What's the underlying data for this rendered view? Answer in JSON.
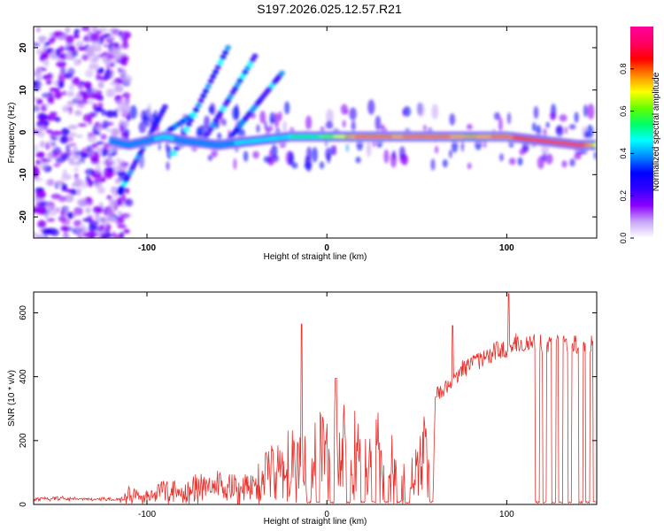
{
  "title": "S197.2026.025.12.57.R21",
  "chart_data": [
    {
      "type": "heatmap",
      "xlabel": "Height of straight line (km)",
      "ylabel": "Frequency (Hz)",
      "xlim": [
        -163,
        150
      ],
      "ylim": [
        -25,
        25
      ],
      "xticks": [
        -100,
        0,
        100
      ],
      "yticks": [
        -20,
        -10,
        0,
        10,
        20
      ],
      "colorbar": {
        "label": "Normalized spectral amplitude",
        "range": [
          0,
          1
        ],
        "ticks": [
          0.0,
          0.2,
          0.4,
          0.6,
          0.8
        ],
        "colormap": [
          "#ffffff",
          "#c9a7f7",
          "#8b00ff",
          "#3300ff",
          "#0000ff",
          "#0088ff",
          "#00ffff",
          "#00ff66",
          "#66ff00",
          "#ffff00",
          "#ff8800",
          "#ff0000",
          "#ff0066",
          "#ff0099"
        ]
      },
      "ridge": {
        "description": "main spectral ridge frequency vs height",
        "x": [
          -120,
          -110,
          -100,
          -90,
          -80,
          -60,
          -40,
          -20,
          0,
          20,
          40,
          60,
          80,
          100,
          120,
          140,
          150
        ],
        "freq": [
          -2,
          -3,
          -2,
          -1,
          -2,
          -3,
          -2,
          -1,
          -1,
          -1,
          -1,
          -1,
          -1,
          -1,
          -2,
          -3,
          -3
        ],
        "peak_amplitude": [
          0.4,
          0.35,
          0.4,
          0.45,
          0.4,
          0.4,
          0.45,
          0.5,
          0.6,
          0.85,
          0.8,
          0.85,
          0.75,
          0.85,
          0.9,
          0.95,
          0.7
        ]
      },
      "noise_region": {
        "x_range": [
          -163,
          -120
        ],
        "amplitude": 0.2
      }
    },
    {
      "type": "line",
      "xlabel": "Height of straight line (km)",
      "ylabel": "SNR (10 * v/v)",
      "xlim": [
        -163,
        150
      ],
      "ylim": [
        0,
        665
      ],
      "xticks": [
        -100,
        0,
        100
      ],
      "yticks": [
        0,
        200,
        400,
        600
      ],
      "color": "#e8302b",
      "series": [
        {
          "name": "SNR",
          "envelope_x": [
            -163,
            -150,
            -130,
            -115,
            -110,
            -100,
            -90,
            -80,
            -70,
            -60,
            -50,
            -40,
            -35,
            -30,
            -25,
            -20,
            -15,
            -10,
            -5,
            0,
            5,
            10,
            15,
            20,
            25,
            30,
            35,
            40,
            45,
            50,
            55,
            60,
            65,
            70,
            75,
            80,
            85,
            90,
            95,
            100,
            105,
            110,
            115,
            120,
            125,
            130,
            135,
            140,
            145,
            150
          ],
          "envelope_y": [
            20,
            22,
            20,
            20,
            60,
            45,
            80,
            70,
            100,
            110,
            100,
            120,
            150,
            200,
            230,
            250,
            240,
            280,
            300,
            260,
            300,
            360,
            340,
            300,
            330,
            350,
            250,
            170,
            120,
            200,
            300,
            360,
            380,
            420,
            450,
            470,
            480,
            500,
            510,
            520,
            540,
            530,
            540,
            530,
            540,
            530,
            535,
            530,
            535,
            540
          ],
          "peak_spikes": [
            {
              "x": -14,
              "y": 565
            },
            {
              "x": 5,
              "y": 395
            },
            {
              "x": 70,
              "y": 560
            },
            {
              "x": 101,
              "y": 660
            }
          ],
          "dropouts_to_zero_x": [
            -10,
            -5,
            3,
            12,
            20,
            26,
            33,
            40,
            45,
            58,
            117,
            121,
            126,
            130,
            135,
            141,
            145,
            149
          ]
        }
      ]
    }
  ]
}
